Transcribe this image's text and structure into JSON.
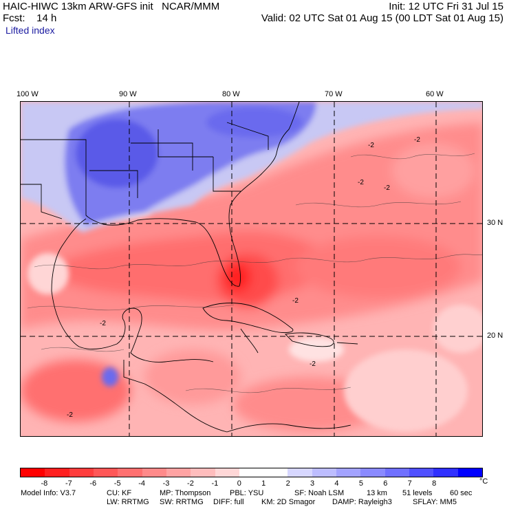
{
  "header": {
    "line1_left": "HAIC-HIWC 13km ARW-GFS init   NCAR/MMM",
    "line2_left": "Fcst:    14 h",
    "field_name": "Lifted index",
    "init": "Init: 12 UTC Fri 31 Jul 15",
    "valid": "Valid: 02 UTC Sat 01 Aug 15 (00 LDT Sat 01 Aug 15)"
  },
  "map": {
    "lon_labels": [
      "100 W",
      "90 W",
      "80 W",
      "70 W",
      "60 W"
    ],
    "lat_labels": [
      "30 N",
      "20 N"
    ],
    "contour_labels": [
      "-2",
      "-2",
      "-2",
      "-2",
      "-2",
      "-2",
      "-2",
      "-2"
    ]
  },
  "colorbar": {
    "colors": [
      "#ff0000",
      "#ff2020",
      "#ff3d3d",
      "#ff5757",
      "#ff7070",
      "#ff8a8a",
      "#ffa3a3",
      "#ffbdbd",
      "#ffd7d7",
      "#ffffff",
      "#ffffff",
      "#d7d7ff",
      "#bdbdff",
      "#a3a3ff",
      "#8a8aff",
      "#7070ff",
      "#5050ff",
      "#3030ff",
      "#0000ff"
    ],
    "ticks": [
      "-8",
      "-7",
      "-6",
      "-5",
      "-4",
      "-3",
      "-2",
      "-1",
      "0",
      "1",
      "2",
      "3",
      "4",
      "5",
      "6",
      "7",
      "8"
    ],
    "unit": "°C"
  },
  "footer": {
    "row1": [
      "Model Info: V3.7",
      "CU: KF",
      "MP: Thompson",
      "PBL: YSU",
      "SF: Noah LSM",
      "13 km",
      "51 levels",
      "60 sec"
    ],
    "row2": [
      "LW: RRTMG",
      "SW: RRTMG",
      "DIFF: full",
      "KM: 2D Smagor",
      "DAMP: Rayleigh3",
      "SFLAY: MM5"
    ]
  }
}
